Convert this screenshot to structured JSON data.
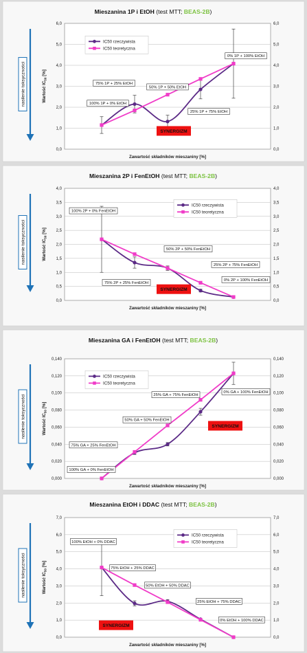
{
  "side_label": "nasilenie toksyczności",
  "chart_data": [
    {
      "type": "line",
      "title_main": "Mieszanina 1P i EtOH",
      "title_mid": " (test MTT; ",
      "title_accent": "BEAS-2B",
      "title_end": ")",
      "xlabel": "Zawartość składników mieszaniny [%]",
      "ylabel_pre": "Wartość IC",
      "ylabel_sub": "50",
      "ylabel_post": " [%]",
      "ylim": [
        0,
        6
      ],
      "yticks": [
        "0,0",
        "1,0",
        "2,0",
        "3,0",
        "4,0",
        "5,0",
        "6,0"
      ],
      "grid": true,
      "legend_placement": "top-left",
      "series": [
        {
          "name": "IC50 rzeczywista",
          "color": "#5b2a86",
          "values": [
            1.15,
            2.15,
            1.32,
            2.85,
            4.08
          ],
          "errors": [
            0.4,
            0.42,
            0.3,
            0.45,
            1.65
          ]
        },
        {
          "name": "IC50 teoretyczna",
          "color": "#f03cc8",
          "values": [
            1.15,
            1.85,
            2.6,
            3.35,
            4.08
          ]
        }
      ],
      "annotations": [
        {
          "text": "100% 1P + 0% EtOH",
          "gx": 0.21,
          "gy": 0.635
        },
        {
          "text": "75% 1P + 25% EtOH",
          "gx": 0.24,
          "gy": 0.475
        },
        {
          "text": "50% 1P + 50% EtOH",
          "gx": 0.5,
          "gy": 0.505
        },
        {
          "text": "25% 1P + 75% EtOH",
          "gx": 0.7,
          "gy": 0.7
        },
        {
          "text": "0% 1P + 100% EtOH",
          "gx": 0.88,
          "gy": 0.258
        }
      ],
      "synergy": {
        "text": "SYNERGIZM",
        "gx": 0.53,
        "gy": 0.855
      }
    },
    {
      "type": "line",
      "title_main": "Mieszanina 2P i FenEtOH",
      "title_mid": " (test MTT; ",
      "title_accent": "BEAS-2B",
      "title_end": ")",
      "xlabel": "Zawartość składników mieszaniny [%]",
      "ylabel_pre": "Wartość IC",
      "ylabel_sub": "50",
      "ylabel_post": " [%]",
      "ylim": [
        0,
        4
      ],
      "yticks": [
        "0,0",
        "0,5",
        "1,0",
        "1,5",
        "2,0",
        "2,5",
        "3,0",
        "3,5",
        "4,0"
      ],
      "grid": true,
      "legend_placement": "top-right",
      "series": [
        {
          "name": "IC50 rzeczywista",
          "color": "#5b2a86",
          "values": [
            2.18,
            1.35,
            1.15,
            0.35,
            0.12
          ],
          "errors": [
            1.18,
            0.2,
            0.08,
            0.05,
            0.03
          ]
        },
        {
          "name": "IC50 teoretyczna",
          "color": "#f03cc8",
          "values": [
            2.18,
            1.65,
            1.15,
            0.63,
            0.12
          ]
        }
      ],
      "annotations": [
        {
          "text": "100% 2P + 0% FenEtOH",
          "gx": 0.14,
          "gy": 0.2
        },
        {
          "text": "50% 2P + 50% FenEtOH",
          "gx": 0.6,
          "gy": 0.54
        },
        {
          "text": "75% 2P + 25% FenEtOH",
          "gx": 0.3,
          "gy": 0.84
        },
        {
          "text": "25% 2P + 75% FenEtOH",
          "gx": 0.83,
          "gy": 0.68
        },
        {
          "text": "0% 2P + 100% FenEtOH",
          "gx": 0.88,
          "gy": 0.815
        }
      ],
      "synergy": {
        "text": "SYNERGIZM",
        "gx": 0.53,
        "gy": 0.9
      }
    },
    {
      "type": "line",
      "title_main": "Mieszanina GA i FenEtOH",
      "title_mid": " (test MTT; ",
      "title_accent": "BEAS-2B",
      "title_end": ")",
      "xlabel": "Zawartość składników mieszaniny [%]",
      "ylabel_pre": "Wartość IC",
      "ylabel_sub": "50",
      "ylabel_post": " [%]",
      "ylim": [
        0,
        0.14
      ],
      "yticks": [
        "0,000",
        "0,020",
        "0,040",
        "0,060",
        "0,080",
        "0,100",
        "0,120",
        "0,140"
      ],
      "grid": true,
      "legend_placement": "top-left",
      "series": [
        {
          "name": "IC50 rzeczywista",
          "color": "#5b2a86",
          "values": [
            0.0,
            0.03,
            0.04,
            0.078,
            0.123
          ],
          "errors": [
            0,
            0.002,
            0.002,
            0.004,
            0.013
          ]
        },
        {
          "name": "IC50 teoretyczna",
          "color": "#f03cc8",
          "values": [
            0.0,
            0.031,
            0.062,
            0.092,
            0.123
          ]
        }
      ],
      "annotations": [
        {
          "text": "25% GA + 75% FenEtOH",
          "gx": 0.54,
          "gy": 0.3
        },
        {
          "text": "0% GA + 100% FenEtOH",
          "gx": 0.88,
          "gy": 0.275
        },
        {
          "text": "50% GA + 50% FenEtOH",
          "gx": 0.4,
          "gy": 0.51
        },
        {
          "text": "75% GA + 25% FenEtOH",
          "gx": 0.14,
          "gy": 0.72
        },
        {
          "text": "100% GA + 0% FenEtOH",
          "gx": 0.13,
          "gy": 0.925
        }
      ],
      "synergy": {
        "text": "SYNERGIZM",
        "gx": 0.78,
        "gy": 0.56
      }
    },
    {
      "type": "line",
      "title_main": "Mieszanina EtOH i DDAC",
      "title_mid": " (test MTT; ",
      "title_accent": "BEAS-2B",
      "title_end": ")",
      "xlabel": "Zawartość składników mieszaniny [%]",
      "ylabel_pre": "Wartość IC",
      "ylabel_sub": "50",
      "ylabel_post": " [%]",
      "ylim": [
        0,
        7
      ],
      "yticks": [
        "0,0",
        "1,0",
        "2,0",
        "3,0",
        "4,0",
        "5,0",
        "6,0",
        "7,0"
      ],
      "grid": true,
      "legend_placement": "top-right",
      "series": [
        {
          "name": "IC50 rzeczywista",
          "color": "#5b2a86",
          "values": [
            4.08,
            1.98,
            2.1,
            1.05,
            0.0
          ],
          "errors": [
            1.65,
            0.15,
            0.1,
            0.05,
            0
          ]
        },
        {
          "name": "IC50 teoretyczna",
          "color": "#f03cc8",
          "values": [
            4.08,
            3.05,
            2.05,
            1.02,
            0.0
          ]
        }
      ],
      "annotations": [
        {
          "text": "100% EtOH + 0% DDAC",
          "gx": 0.14,
          "gy": 0.2
        },
        {
          "text": "75% EtOH + 25% DDAC",
          "gx": 0.33,
          "gy": 0.42
        },
        {
          "text": "50% EtOH + 50% DDAC",
          "gx": 0.5,
          "gy": 0.565
        },
        {
          "text": "25% EtOH + 75% DDAC",
          "gx": 0.75,
          "gy": 0.7
        },
        {
          "text": "0% EtOH + 100% DDAC",
          "gx": 0.86,
          "gy": 0.855
        }
      ],
      "synergy": {
        "text": "SYNERGIZM",
        "gx": 0.25,
        "gy": 0.9
      }
    }
  ]
}
